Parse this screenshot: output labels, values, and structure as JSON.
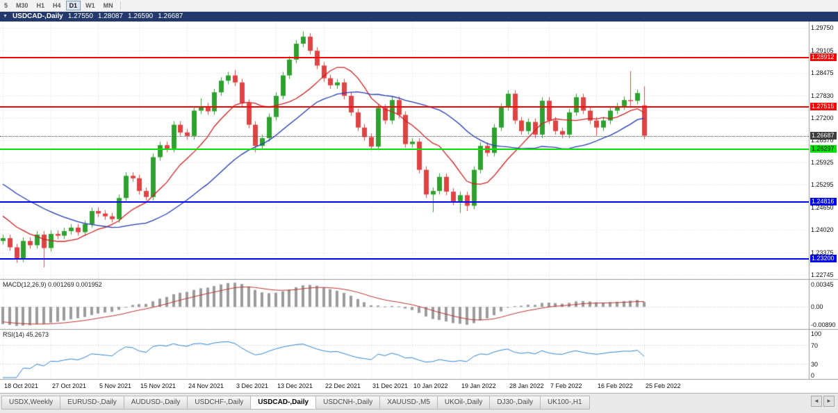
{
  "toolbar": {
    "periods": [
      {
        "label": "5",
        "active": false
      },
      {
        "label": "M30",
        "active": false
      },
      {
        "label": "H1",
        "active": false
      },
      {
        "label": "H4",
        "active": false
      },
      {
        "label": "D1",
        "active": true
      },
      {
        "label": "W1",
        "active": false
      },
      {
        "label": "MN",
        "active": false
      }
    ]
  },
  "chart": {
    "title": "USDCAD-,Daily",
    "ohlc": {
      "open": "1.27550",
      "high": "1.28087",
      "low": "1.26590",
      "close": "1.26687"
    }
  },
  "price_scale": {
    "range": {
      "max": 1.2993,
      "min": 1.2262
    },
    "gridline_labels": [
      "1.29750",
      "1.29105",
      "1.28475",
      "1.27830",
      "1.27200",
      "1.26570",
      "1.25925",
      "1.25295",
      "1.24650",
      "1.24020",
      "1.23375",
      "1.22745"
    ]
  },
  "levels": [
    {
      "name": "resistance-line-1-28912",
      "label": "1.28912",
      "price": 1.28912,
      "color": "#FF0000",
      "text": "#FFFFFF"
    },
    {
      "name": "resistance-line-1-27515",
      "label": "1.27515",
      "price": 1.27515,
      "color": "#FF0000",
      "text": "#FFFFFF"
    },
    {
      "name": "support-line-1-26297",
      "label": "1.26297",
      "price": 1.26297,
      "color": "#00E100",
      "text": "#000000"
    },
    {
      "name": "support-line-1-24816",
      "label": "1.24816",
      "price": 1.24816,
      "color": "#0000F0",
      "text": "#FFFFFF"
    },
    {
      "name": "support-line-1-23200",
      "label": "1.23200",
      "price": 1.232,
      "color": "#0000F0",
      "text": "#FFFFFF"
    }
  ],
  "current_price": {
    "label": "1.26687",
    "price": 1.26687,
    "color": "#3C3C3C",
    "text": "#FFFFFF"
  },
  "chart_data": {
    "type": "candlestick",
    "symbol": "USDCAD-",
    "timeframe": "Daily",
    "title": "USDCAD-,Daily",
    "x_labels": [
      "18 Oct 2021",
      "27 Oct 2021",
      "5 Nov 2021",
      "15 Nov 2021",
      "24 Nov 2021",
      "3 Dec 2021",
      "13 Dec 2021",
      "22 Dec 2021",
      "31 Dec 2021",
      "10 Jan 2022",
      "19 Jan 2022",
      "28 Jan 2022",
      "7 Feb 2022",
      "16 Feb 2022",
      "25 Feb 2022"
    ],
    "x_label_indices": [
      0,
      7,
      14,
      20,
      27,
      34,
      40,
      47,
      54,
      60,
      67,
      74,
      80,
      87,
      94
    ],
    "open": [
      1.237,
      1.2378,
      1.2352,
      1.232,
      1.237,
      1.2358,
      1.2388,
      1.235,
      1.239,
      1.2385,
      1.2398,
      1.2408,
      1.2395,
      1.2418,
      1.2455,
      1.2448,
      1.244,
      1.2432,
      1.2492,
      1.2555,
      1.2548,
      1.2512,
      1.2495,
      1.2608,
      1.2642,
      1.2632,
      1.27,
      1.2678,
      1.2668,
      1.274,
      1.2752,
      1.2738,
      1.2792,
      1.2825,
      1.284,
      1.282,
      1.2762,
      1.27,
      1.264,
      1.2662,
      1.2722,
      1.2782,
      1.284,
      1.2885,
      1.293,
      1.295,
      1.291,
      1.2868,
      1.2832,
      1.2812,
      1.282,
      1.2782,
      1.2735,
      1.2692,
      1.2665,
      1.2638,
      1.2748,
      1.2712,
      1.277,
      1.2728,
      1.2645,
      1.2652,
      1.2572,
      1.2502,
      1.2512,
      1.2552,
      1.251,
      1.2482,
      1.25,
      1.247,
      1.2572,
      1.264,
      1.262,
      1.2692,
      1.275,
      1.2788,
      1.2712,
      1.2682,
      1.2708,
      1.2672,
      1.2768,
      1.2712,
      1.2682,
      1.2672,
      1.2735,
      1.2778,
      1.274,
      1.2712,
      1.2692,
      1.2712,
      1.274,
      1.2752,
      1.277,
      1.2768,
      1.2755
    ],
    "high": [
      1.2388,
      1.2388,
      1.2362,
      1.238,
      1.238,
      1.2398,
      1.2398,
      1.24,
      1.24,
      1.2408,
      1.2418,
      1.2418,
      1.2428,
      1.2465,
      1.2465,
      1.2458,
      1.245,
      1.2502,
      1.2565,
      1.2565,
      1.2558,
      1.2522,
      1.2618,
      1.2652,
      1.2652,
      1.271,
      1.271,
      1.2688,
      1.275,
      1.2775,
      1.2762,
      1.2802,
      1.2835,
      1.285,
      1.2855,
      1.283,
      1.2772,
      1.271,
      1.2672,
      1.2732,
      1.2792,
      1.285,
      1.2895,
      1.294,
      1.2965,
      1.296,
      1.292,
      1.2878,
      1.2842,
      1.283,
      1.283,
      1.2792,
      1.2745,
      1.2702,
      1.2675,
      1.2758,
      1.2758,
      1.278,
      1.278,
      1.2738,
      1.2662,
      1.2662,
      1.2582,
      1.2522,
      1.2562,
      1.2562,
      1.252,
      1.251,
      1.251,
      1.2582,
      1.265,
      1.265,
      1.2702,
      1.276,
      1.2798,
      1.2798,
      1.2722,
      1.2718,
      1.2718,
      1.2778,
      1.2778,
      1.2722,
      1.2692,
      1.2745,
      1.2788,
      1.2788,
      1.275,
      1.2722,
      1.2722,
      1.275,
      1.2762,
      1.278,
      1.2852,
      1.28,
      1.28087
    ],
    "low": [
      1.236,
      1.2342,
      1.2308,
      1.231,
      1.2348,
      1.2348,
      1.2295,
      1.234,
      1.2375,
      1.2375,
      1.2388,
      1.2385,
      1.2385,
      1.2408,
      1.2438,
      1.243,
      1.2422,
      1.2422,
      1.2482,
      1.2538,
      1.2502,
      1.2485,
      1.2485,
      1.2598,
      1.2622,
      1.2622,
      1.2668,
      1.2658,
      1.2658,
      1.273,
      1.2728,
      1.2728,
      1.2782,
      1.2815,
      1.281,
      1.2752,
      1.269,
      1.2622,
      1.263,
      1.2652,
      1.2712,
      1.2772,
      1.283,
      1.2875,
      1.292,
      1.29,
      1.2858,
      1.2822,
      1.2802,
      1.2802,
      1.2772,
      1.2725,
      1.2682,
      1.2655,
      1.2628,
      1.2628,
      1.2702,
      1.2702,
      1.2718,
      1.2635,
      1.2635,
      1.2562,
      1.2492,
      1.2452,
      1.2502,
      1.25,
      1.2472,
      1.245,
      1.2455,
      1.246,
      1.2562,
      1.261,
      1.261,
      1.2682,
      1.274,
      1.2702,
      1.2672,
      1.2672,
      1.2662,
      1.2662,
      1.2702,
      1.2672,
      1.2662,
      1.2662,
      1.2725,
      1.273,
      1.2702,
      1.2668,
      1.2682,
      1.2702,
      1.273,
      1.2742,
      1.2748,
      1.2758,
      1.2659
    ],
    "close": [
      1.2378,
      1.2352,
      1.232,
      1.237,
      1.2358,
      1.2388,
      1.235,
      1.239,
      1.2385,
      1.2398,
      1.2408,
      1.2395,
      1.2418,
      1.2455,
      1.2448,
      1.244,
      1.2432,
      1.2492,
      1.2555,
      1.2548,
      1.2512,
      1.2495,
      1.2608,
      1.2642,
      1.2632,
      1.27,
      1.2678,
      1.2668,
      1.274,
      1.2752,
      1.2738,
      1.2792,
      1.2825,
      1.284,
      1.282,
      1.2762,
      1.27,
      1.264,
      1.2662,
      1.2722,
      1.2782,
      1.284,
      1.2885,
      1.293,
      1.295,
      1.291,
      1.2868,
      1.2832,
      1.2812,
      1.282,
      1.2782,
      1.2735,
      1.2692,
      1.2665,
      1.2638,
      1.2748,
      1.2712,
      1.277,
      1.2728,
      1.2645,
      1.2652,
      1.2572,
      1.2502,
      1.2512,
      1.2552,
      1.251,
      1.2482,
      1.25,
      1.247,
      1.2572,
      1.264,
      1.262,
      1.2692,
      1.275,
      1.2788,
      1.2712,
      1.2682,
      1.2708,
      1.2672,
      1.2768,
      1.2712,
      1.2682,
      1.2672,
      1.2735,
      1.2778,
      1.274,
      1.2712,
      1.2692,
      1.2712,
      1.274,
      1.2752,
      1.277,
      1.2768,
      1.279,
      1.26687
    ],
    "seed_closes": [
      1.27,
      1.2688,
      1.2676,
      1.2664,
      1.2652,
      1.264,
      1.2628,
      1.2616,
      1.2604,
      1.2592,
      1.258,
      1.2568,
      1.2556,
      1.2544,
      1.2532,
      1.252,
      1.2508,
      1.2496,
      1.2484,
      1.2472,
      1.246,
      1.2448,
      1.2436,
      1.2424,
      1.241,
      1.2398
    ],
    "overlays": [
      {
        "name": "ma-fast",
        "type": "sma",
        "period": 10,
        "color": "#CC2222"
      },
      {
        "name": "ma-slow",
        "type": "sma",
        "period": 25,
        "color": "#2038B0"
      }
    ]
  },
  "macd": {
    "label": "MACD(12,26,9)",
    "value_main": "0.001269",
    "value_signal": "0.001952",
    "fast": 12,
    "slow": 26,
    "signal": 9,
    "scale_top": "0.00345",
    "scale_zero": "0.00",
    "scale_bottom": "-0.00890",
    "histogram_color": "#9c9c9c",
    "signal_color": "#C03030"
  },
  "rsi": {
    "label": "RSI(14)",
    "period": 14,
    "value": "45.2673",
    "scale": [
      "100",
      "70",
      "30",
      "0"
    ],
    "level_high": 70,
    "level_low": 30,
    "line_color": "#2E86D3"
  },
  "tabs": [
    {
      "label": "USDX,Weekly",
      "active": false
    },
    {
      "label": "EURUSD-,Daily",
      "active": false
    },
    {
      "label": "AUDUSD-,Daily",
      "active": false
    },
    {
      "label": "USDCHF-,Daily",
      "active": false
    },
    {
      "label": "USDCAD-,Daily",
      "active": true
    },
    {
      "label": "USDCNH-,Daily",
      "active": false
    },
    {
      "label": "XAUUSD-,M5",
      "active": false
    },
    {
      "label": "UKOil-,Daily",
      "active": false
    },
    {
      "label": "DJ30-,Daily",
      "active": false
    },
    {
      "label": "UK100-,H1",
      "active": false
    }
  ],
  "tab_scroll": {
    "left": "◄",
    "right": "►"
  },
  "colors": {
    "up": "#2EA12E",
    "down": "#E04343",
    "grid": "#DCDCDC",
    "panel_border": "#9A9A9A",
    "background": "#FFFFFF"
  }
}
